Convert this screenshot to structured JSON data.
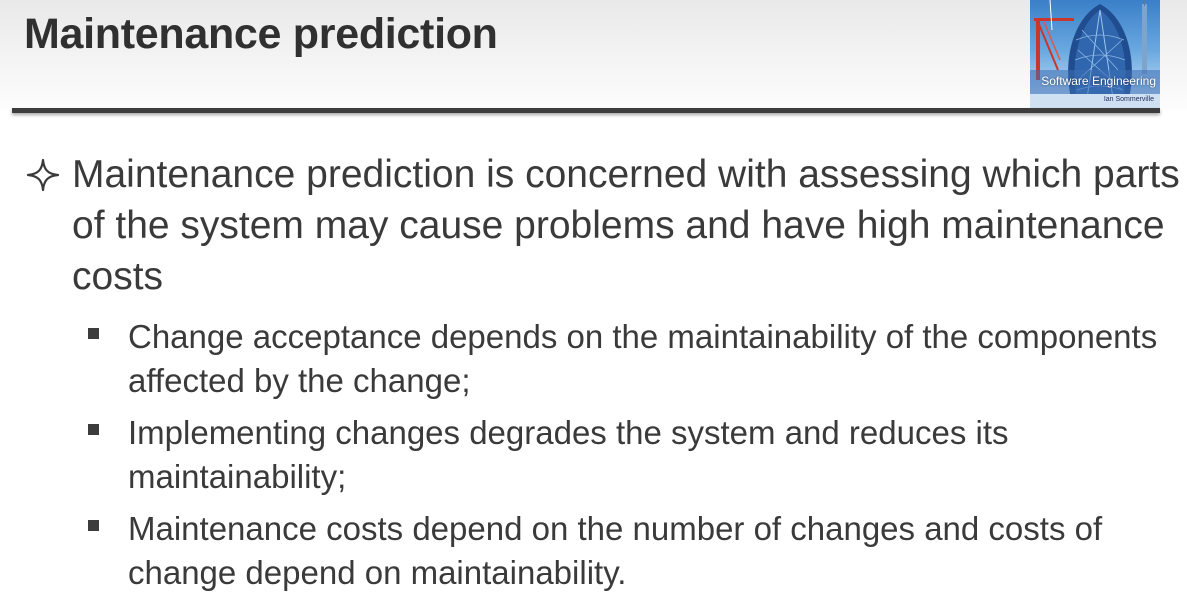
{
  "slide": {
    "title": "Maintenance prediction",
    "logo": {
      "book_title": "Software Engineering",
      "author": "Ian Sommerville"
    },
    "main_bullet": {
      "icon": "four-pointed-star-icon",
      "text": "Maintenance prediction is concerned with assessing which parts of the system may cause problems and have high maintenance costs"
    },
    "sub_bullets": [
      {
        "icon": "square-bullet-icon",
        "text": "Change acceptance depends on the maintainability of the components affected by the change;"
      },
      {
        "icon": "square-bullet-icon",
        "text": "Implementing changes degrades the system and reduces its maintainability;"
      },
      {
        "icon": "square-bullet-icon",
        "text": "Maintenance costs depend on the number of changes and costs of change depend on maintainability."
      }
    ]
  }
}
